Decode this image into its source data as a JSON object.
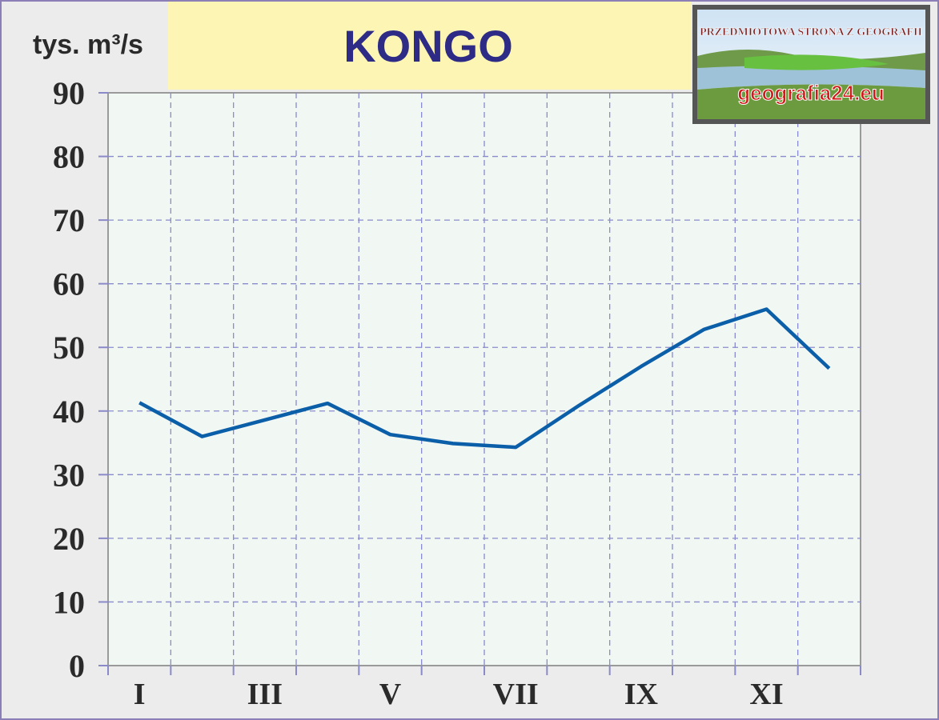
{
  "chart_data": {
    "type": "line",
    "title": "KONGO",
    "y_label": "tys. m³/s",
    "categories": [
      "I",
      null,
      "III",
      null,
      "V",
      null,
      "VII",
      null,
      "IX",
      null,
      "XI",
      null
    ],
    "series": [
      {
        "name": "Kongo",
        "color": "#0b5ea8",
        "values": [
          41.3,
          36,
          38.6,
          41.2,
          36.3,
          34.9,
          34.3,
          40.8,
          47,
          52.8,
          56,
          46.7
        ]
      }
    ],
    "ylim": [
      0,
      90
    ],
    "yticks": [
      0,
      10,
      20,
      30,
      40,
      50,
      60,
      70,
      80,
      90
    ],
    "grid": true,
    "logo": {
      "caption": "PRZEDMIOTOWA STRONA Z GEOGRAFII",
      "site": "geografia24.eu"
    }
  }
}
